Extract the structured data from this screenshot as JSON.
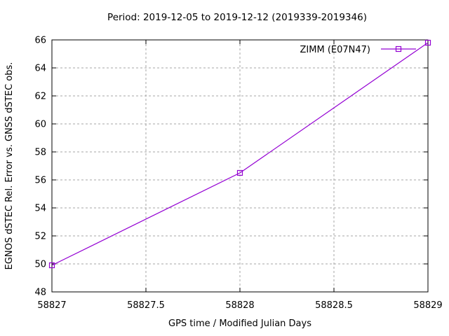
{
  "chart_data": {
    "type": "line",
    "title": "Period: 2019-12-05 to 2019-12-12 (2019339-2019346)",
    "xlabel": "GPS time / Modified Julian Days",
    "ylabel": "EGNOS dSTEC Rel. Error vs. GNSS dSTEC obs.",
    "xlim": [
      58827,
      58829
    ],
    "ylim": [
      48,
      66
    ],
    "xticks": [
      58827,
      58827.5,
      58828,
      58828.5,
      58829
    ],
    "xtick_labels": [
      "58827",
      "58827.5",
      "58828",
      "58828.5",
      "58829"
    ],
    "yticks": [
      48,
      50,
      52,
      54,
      56,
      58,
      60,
      62,
      64,
      66
    ],
    "ytick_labels": [
      "48",
      "50",
      "52",
      "54",
      "56",
      "58",
      "60",
      "62",
      "64",
      "66"
    ],
    "grid": true,
    "grid_style": "dashed-gray",
    "legend_position": "top-right-inside",
    "series": [
      {
        "name": "ZIMM (E07N47)",
        "color": "#9400d3",
        "marker": "open-square",
        "x": [
          58827,
          58828,
          58829
        ],
        "y": [
          49.9,
          56.5,
          65.8
        ]
      }
    ],
    "colors": {
      "background": "#ffffff",
      "plot_border": "#000000",
      "grid": "#a6a6a6",
      "text": "#000000",
      "series_1": "#9400d3"
    }
  }
}
